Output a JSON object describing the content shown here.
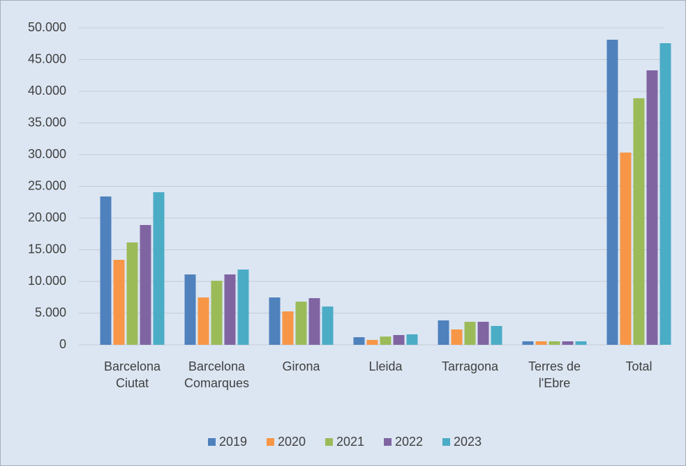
{
  "chart_data": {
    "type": "bar",
    "categories": [
      "Barcelona Ciutat",
      "Barcelona Comarques",
      "Girona",
      "Lleida",
      "Tarragona",
      "Terres de l'Ebre",
      "Total"
    ],
    "series": [
      {
        "name": "2019",
        "color": "#4f81bd",
        "values": [
          23400,
          11100,
          7470,
          1200,
          3850,
          550,
          48130
        ]
      },
      {
        "name": "2020",
        "color": "#f79646",
        "values": [
          13400,
          7470,
          5270,
          770,
          2420,
          550,
          30330
        ]
      },
      {
        "name": "2021",
        "color": "#9bbb59",
        "values": [
          16150,
          10100,
          6810,
          1300,
          3630,
          550,
          38900
        ]
      },
      {
        "name": "2022",
        "color": "#8064a2",
        "values": [
          18900,
          11100,
          7360,
          1540,
          3630,
          550,
          43300
        ]
      },
      {
        "name": "2023",
        "color": "#4bacc6",
        "values": [
          24070,
          11870,
          6040,
          1650,
          2970,
          550,
          47580
        ]
      }
    ],
    "ylim": [
      0,
      50000
    ],
    "yticks": [
      0,
      {
        "value": 5000,
        "label": "5.000"
      },
      {
        "value": 10000,
        "label": "10.000"
      },
      {
        "value": 15000,
        "label": "15.000"
      },
      {
        "value": 20000,
        "label": "20.000"
      },
      {
        "value": 25000,
        "label": "25.000"
      },
      {
        "value": 30000,
        "label": "30.000"
      },
      {
        "value": 35000,
        "label": "35.000"
      },
      {
        "value": 40000,
        "label": "40.000"
      },
      {
        "value": 45000,
        "label": "45.000"
      },
      {
        "value": 50000,
        "label": "50.000"
      }
    ],
    "grid": true,
    "legend": "bottom"
  }
}
